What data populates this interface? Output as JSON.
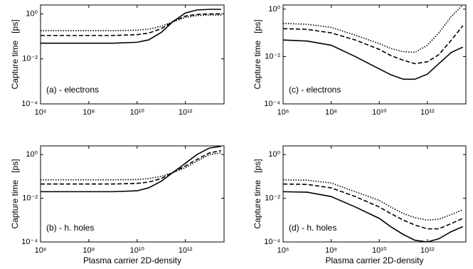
{
  "chart_data": [
    {
      "type": "line",
      "ylabel": "Capture time   [ps]",
      "annotation": "(a) - electrons",
      "log_x": true,
      "log_y": true,
      "xlim": [
        1000000,
        40000000000000
      ],
      "ylim": [
        0.0001,
        2.5
      ],
      "xticks": [
        {
          "value": 1000000,
          "label": "10⁶"
        },
        {
          "value": 100000000,
          "label": "10⁸"
        },
        {
          "value": 10000000000,
          "label": "10¹⁰"
        },
        {
          "value": 1000000000000,
          "label": "10¹²"
        }
      ],
      "yticks": [
        {
          "value": 0.0001,
          "label": "10⁻⁴"
        },
        {
          "value": 0.01,
          "label": "10⁻²"
        },
        {
          "value": 1,
          "label": "10⁰"
        }
      ],
      "x": [
        1000000,
        10000000,
        100000000,
        1000000000,
        10000000000,
        30000000000,
        100000000000,
        300000000000,
        1000000000000,
        3000000000000,
        10000000000000,
        30000000000000
      ],
      "series": [
        {
          "color": "#000000",
          "dash": "solid",
          "values": [
            0.05,
            0.05,
            0.05,
            0.05,
            0.055,
            0.07,
            0.15,
            0.45,
            1.1,
            1.5,
            1.6,
            1.6
          ]
        },
        {
          "color": "#000000",
          "dash": "dashed",
          "values": [
            0.11,
            0.11,
            0.11,
            0.11,
            0.12,
            0.14,
            0.22,
            0.45,
            0.8,
            0.95,
            1.0,
            1.0
          ]
        },
        {
          "color": "#000000",
          "dash": "dotted",
          "values": [
            0.18,
            0.18,
            0.18,
            0.18,
            0.19,
            0.21,
            0.28,
            0.45,
            0.7,
            0.85,
            0.9,
            0.9
          ]
        }
      ]
    },
    {
      "type": "line",
      "ylabel": "Capture time   [ps]",
      "annotation": "(c) - electrons",
      "log_x": true,
      "log_y": true,
      "xlim": [
        1000000,
        40000000000000
      ],
      "ylim": [
        0.0001,
        1.5
      ],
      "xticks": [
        {
          "value": 1000000,
          "label": "10⁶"
        },
        {
          "value": 100000000,
          "label": "10⁸"
        },
        {
          "value": 10000000000,
          "label": "10¹⁰"
        },
        {
          "value": 1000000000000,
          "label": "10¹²"
        }
      ],
      "yticks": [
        {
          "value": 0.0001,
          "label": "10⁻⁴"
        },
        {
          "value": 0.01,
          "label": "10⁻²"
        },
        {
          "value": 1,
          "label": "10⁰"
        }
      ],
      "x": [
        1000000,
        10000000,
        100000000,
        1000000000,
        10000000000,
        30000000000,
        100000000000,
        300000000000,
        1000000000000,
        3000000000000,
        10000000000000,
        30000000000000
      ],
      "series": [
        {
          "color": "#000000",
          "dash": "solid",
          "values": [
            0.05,
            0.045,
            0.03,
            0.01,
            0.003,
            0.0017,
            0.0011,
            0.0011,
            0.0018,
            0.005,
            0.015,
            0.025
          ]
        },
        {
          "color": "#000000",
          "dash": "dashed",
          "values": [
            0.15,
            0.14,
            0.1,
            0.05,
            0.02,
            0.011,
            0.007,
            0.005,
            0.006,
            0.012,
            0.05,
            0.2
          ]
        },
        {
          "color": "#000000",
          "dash": "dotted",
          "values": [
            0.25,
            0.23,
            0.17,
            0.08,
            0.035,
            0.022,
            0.016,
            0.015,
            0.03,
            0.1,
            0.5,
            1.5
          ]
        }
      ]
    },
    {
      "type": "line",
      "ylabel": "Capture time   [ps]",
      "xlabel": "Plasma carrier 2D-density",
      "annotation": "(b) - h. holes",
      "log_x": true,
      "log_y": true,
      "xlim": [
        1000000,
        40000000000000
      ],
      "ylim": [
        0.0001,
        2.5
      ],
      "xticks": [
        {
          "value": 1000000,
          "label": "10⁶"
        },
        {
          "value": 100000000,
          "label": "10⁸"
        },
        {
          "value": 10000000000,
          "label": "10¹⁰"
        },
        {
          "value": 1000000000000,
          "label": "10¹²"
        }
      ],
      "yticks": [
        {
          "value": 0.0001,
          "label": "10⁻⁴"
        },
        {
          "value": 0.01,
          "label": "10⁻²"
        },
        {
          "value": 1,
          "label": "10⁰"
        }
      ],
      "x": [
        1000000,
        10000000,
        100000000,
        1000000000,
        10000000000,
        30000000000,
        100000000000,
        300000000000,
        1000000000000,
        3000000000000,
        10000000000000,
        30000000000000
      ],
      "series": [
        {
          "color": "#000000",
          "dash": "solid",
          "values": [
            0.02,
            0.02,
            0.02,
            0.02,
            0.022,
            0.03,
            0.06,
            0.15,
            0.4,
            1.0,
            2.0,
            2.4
          ]
        },
        {
          "color": "#000000",
          "dash": "dashed",
          "values": [
            0.045,
            0.045,
            0.045,
            0.045,
            0.048,
            0.055,
            0.08,
            0.15,
            0.3,
            0.6,
            1.2,
            1.5
          ]
        },
        {
          "color": "#000000",
          "dash": "dotted",
          "values": [
            0.07,
            0.07,
            0.07,
            0.07,
            0.072,
            0.08,
            0.1,
            0.15,
            0.25,
            0.5,
            1.0,
            1.2
          ]
        }
      ]
    },
    {
      "type": "line",
      "ylabel": "Capture time   [ps]",
      "xlabel": "Plasma carrier 2D-density",
      "annotation": "(d) - h. holes",
      "log_x": true,
      "log_y": true,
      "xlim": [
        1000000,
        40000000000000
      ],
      "ylim": [
        0.0001,
        2.5
      ],
      "xticks": [
        {
          "value": 1000000,
          "label": "10⁶"
        },
        {
          "value": 100000000,
          "label": "10⁸"
        },
        {
          "value": 10000000000,
          "label": "10¹⁰"
        },
        {
          "value": 1000000000000,
          "label": "10¹²"
        }
      ],
      "yticks": [
        {
          "value": 0.0001,
          "label": "10⁻⁴"
        },
        {
          "value": 0.01,
          "label": "10⁻²"
        },
        {
          "value": 1,
          "label": "10⁰"
        }
      ],
      "x": [
        1000000,
        10000000,
        100000000,
        1000000000,
        10000000000,
        30000000000,
        100000000000,
        300000000000,
        1000000000000,
        3000000000000,
        10000000000000,
        30000000000000
      ],
      "series": [
        {
          "color": "#000000",
          "dash": "solid",
          "values": [
            0.02,
            0.019,
            0.012,
            0.004,
            0.0012,
            0.0005,
            0.00022,
            0.00012,
            0.0001,
            0.00014,
            0.0003,
            0.0005
          ]
        },
        {
          "color": "#000000",
          "dash": "dashed",
          "values": [
            0.045,
            0.043,
            0.03,
            0.012,
            0.004,
            0.002,
            0.001,
            0.0006,
            0.0004,
            0.0004,
            0.0007,
            0.0012
          ]
        },
        {
          "color": "#000000",
          "dash": "dotted",
          "values": [
            0.07,
            0.067,
            0.05,
            0.02,
            0.008,
            0.004,
            0.002,
            0.0013,
            0.001,
            0.0011,
            0.0018,
            0.003
          ]
        }
      ]
    }
  ]
}
